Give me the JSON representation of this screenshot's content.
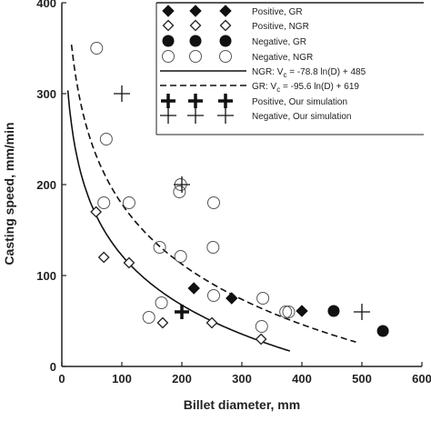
{
  "chart_data": {
    "type": "scatter",
    "xlabel": "Billet diameter, mm",
    "ylabel": "Casting speed, mm/min",
    "xlim": [
      0,
      600
    ],
    "ylim": [
      0,
      400
    ],
    "x_ticks": [
      "0",
      "100",
      "200",
      "300",
      "400",
      "500",
      "600"
    ],
    "y_ticks": [
      "0",
      "100",
      "200",
      "300",
      "400"
    ],
    "legend_position": "top-right",
    "series": [
      {
        "name": "Positive, GR",
        "marker": "diamond-filled",
        "points": [
          [
            220,
            86
          ],
          [
            283,
            75
          ],
          [
            400,
            61
          ]
        ]
      },
      {
        "name": "Positive, NGR",
        "marker": "diamond-open",
        "points": [
          [
            57,
            170
          ],
          [
            70,
            120
          ],
          [
            112,
            114
          ],
          [
            168,
            48
          ],
          [
            250,
            48
          ],
          [
            332,
            30
          ]
        ]
      },
      {
        "name": "Negative, GR",
        "marker": "circle-filled",
        "points": [
          [
            453,
            61
          ],
          [
            535,
            39
          ]
        ]
      },
      {
        "name": "Negative, NGR",
        "marker": "circle-open",
        "points": [
          [
            58,
            350
          ],
          [
            74,
            250
          ],
          [
            70,
            180
          ],
          [
            112,
            180
          ],
          [
            145,
            54
          ],
          [
            163,
            131
          ],
          [
            166,
            70
          ],
          [
            196,
            192
          ],
          [
            198,
            200
          ],
          [
            198,
            121
          ],
          [
            252,
            131
          ],
          [
            253,
            180
          ],
          [
            253,
            78
          ],
          [
            335,
            75
          ],
          [
            333,
            44
          ],
          [
            373,
            60
          ],
          [
            378,
            60
          ]
        ]
      },
      {
        "name": "NGR: V<sub>c</sub> = -78.8 ln(D) + 485",
        "legend_label": "NGR: V",
        "legend_sub": "c",
        "legend_rest": " = -78.8 ln(D) + 485",
        "type": "line",
        "dash": "solid",
        "formula": {
          "a": -78.8,
          "b": 485
        },
        "x_range": [
          10,
          380
        ]
      },
      {
        "name": "GR: V<sub>c</sub> = -95.6 ln(D) + 619",
        "legend_label": "GR: V",
        "legend_sub": "c",
        "legend_rest": " = -95.6 ln(D) + 619",
        "type": "line",
        "dash": "dashed",
        "formula": {
          "a": -95.6,
          "b": 619
        },
        "x_range": [
          16,
          490
        ]
      },
      {
        "name": "Positive, Our simulation",
        "marker": "plus-bold",
        "points": [
          [
            200,
            60
          ]
        ]
      },
      {
        "name": "Negative, Our simulation",
        "marker": "plus-thin",
        "points": [
          [
            100,
            300
          ],
          [
            200,
            200
          ],
          [
            500,
            60
          ]
        ]
      }
    ]
  }
}
